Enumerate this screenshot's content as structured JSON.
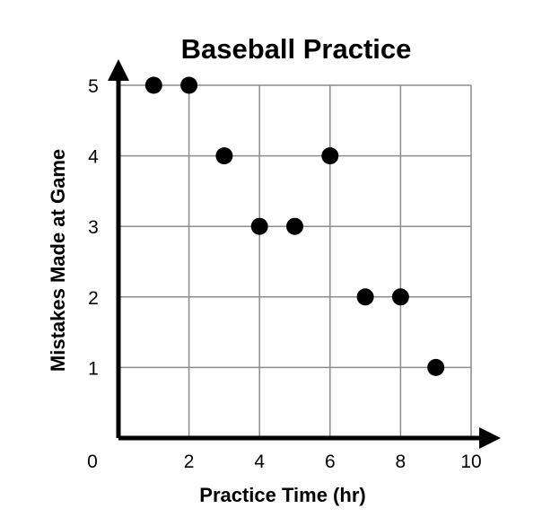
{
  "chart_data": {
    "type": "scatter",
    "title": "Baseball Practice",
    "xlabel": "Practice Time (hr)",
    "ylabel": "Mistakes Made at Game",
    "xlim": [
      0,
      10
    ],
    "ylim": [
      0,
      5
    ],
    "x_ticks": [
      "2",
      "4",
      "6",
      "8",
      "10"
    ],
    "y_ticks": [
      "1",
      "2",
      "3",
      "4",
      "5"
    ],
    "origin_label": "0",
    "grid": true,
    "points": [
      {
        "x": 1,
        "y": 5
      },
      {
        "x": 2,
        "y": 5
      },
      {
        "x": 3,
        "y": 4
      },
      {
        "x": 4,
        "y": 3
      },
      {
        "x": 5,
        "y": 3
      },
      {
        "x": 6,
        "y": 4
      },
      {
        "x": 7,
        "y": 2
      },
      {
        "x": 8,
        "y": 2
      },
      {
        "x": 9,
        "y": 1
      }
    ],
    "marker_color": "#000000"
  }
}
